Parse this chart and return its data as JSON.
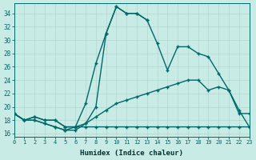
{
  "xlabel": "Humidex (Indice chaleur)",
  "bg_color": "#c8ebe5",
  "line_color": "#006868",
  "grid_color": "#b0d8d0",
  "xlim": [
    0,
    23
  ],
  "ylim": [
    15.5,
    35.5
  ],
  "yticks": [
    16,
    18,
    20,
    22,
    24,
    26,
    28,
    30,
    32,
    34
  ],
  "xticks": [
    0,
    1,
    2,
    3,
    4,
    5,
    6,
    7,
    8,
    9,
    10,
    11,
    12,
    13,
    14,
    15,
    16,
    17,
    18,
    19,
    20,
    21,
    22,
    23
  ],
  "line1_x": [
    0,
    1,
    2,
    3,
    4,
    5,
    6,
    7,
    8,
    9,
    10,
    11,
    12,
    13,
    14,
    15,
    16,
    17,
    18,
    19,
    20,
    21,
    22,
    23
  ],
  "line1_y": [
    19,
    18,
    18,
    17.5,
    17,
    16.5,
    16.5,
    17.5,
    20,
    31,
    35,
    34,
    34,
    33,
    29.5,
    25.5,
    29,
    29,
    28,
    27.5,
    25,
    22.5,
    19,
    19
  ],
  "line2_x": [
    0,
    1,
    2,
    3,
    4,
    5,
    6,
    7,
    8,
    9,
    10,
    11,
    12,
    13
  ],
  "line2_y": [
    19,
    18,
    18,
    17.5,
    17,
    16.5,
    17,
    20.5,
    26.5,
    31,
    35,
    34,
    34,
    33
  ],
  "line3_x": [
    0,
    1,
    2,
    3,
    4,
    5,
    6,
    7,
    8,
    9,
    10,
    11,
    12,
    13,
    14,
    15,
    16,
    17,
    18,
    19,
    20,
    21,
    22,
    23
  ],
  "line3_y": [
    19,
    18,
    18.5,
    18,
    18,
    17,
    17,
    17.5,
    18.5,
    19.5,
    20.5,
    21,
    21.5,
    22,
    22.5,
    23,
    23.5,
    24,
    24,
    22.5,
    23,
    22.5,
    19.5,
    17
  ],
  "line4_x": [
    0,
    1,
    2,
    3,
    4,
    5,
    6,
    7,
    8,
    9,
    10,
    11,
    12,
    13,
    14,
    15,
    16,
    17,
    18,
    19,
    20,
    21,
    22,
    23
  ],
  "line4_y": [
    19,
    18,
    18.5,
    18,
    18,
    17,
    17,
    17,
    17,
    17,
    17,
    17,
    17,
    17,
    17,
    17,
    17,
    17,
    17,
    17,
    17,
    17,
    17,
    17
  ]
}
